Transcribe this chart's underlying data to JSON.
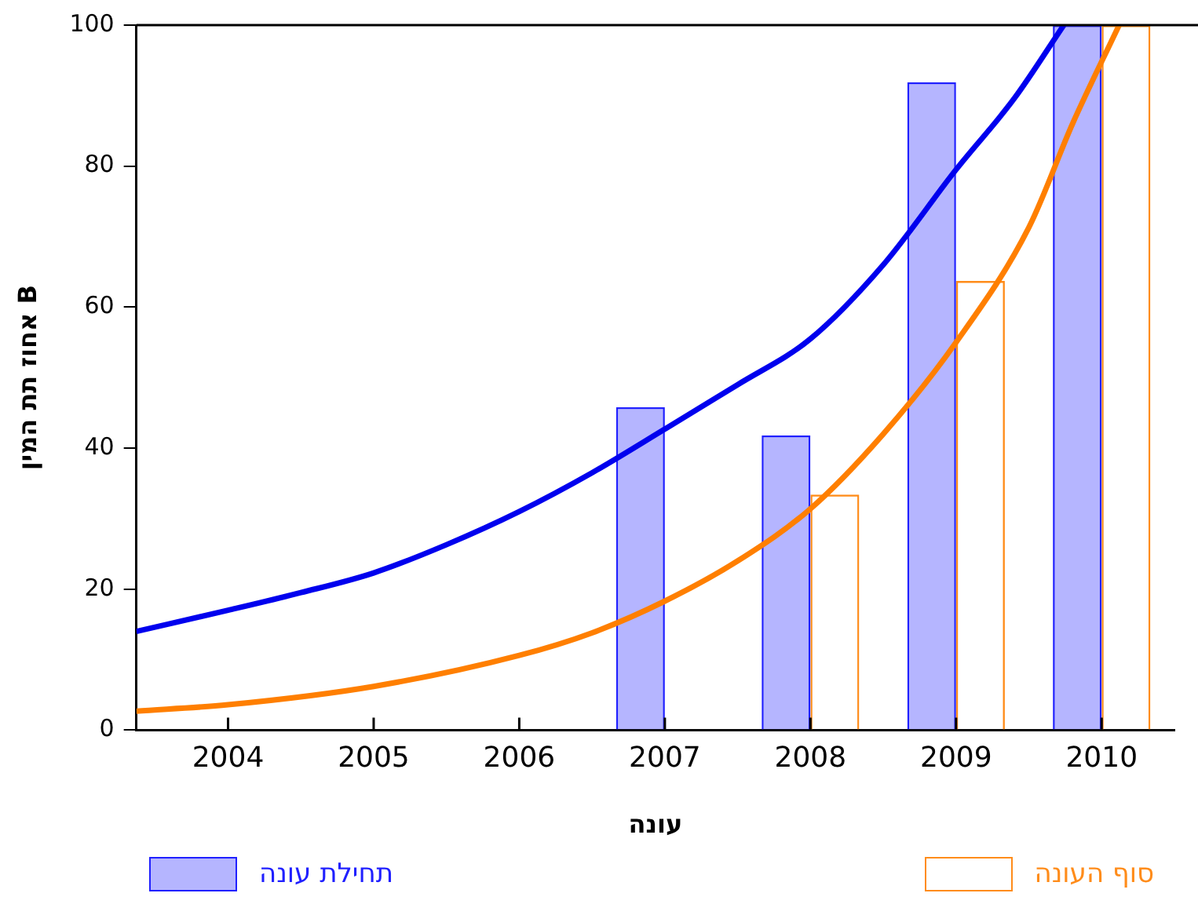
{
  "chart_data": {
    "type": "bar",
    "xlabel": "עונה",
    "ylabel": "אחוז תת המין B",
    "legend": "bottom",
    "grid": false,
    "x": [
      2007,
      2008,
      2009,
      2010
    ],
    "series": [
      {
        "name": "תחילת עונה",
        "color": "#2020ff",
        "values": [
          45.8,
          41.8,
          91.9,
          100
        ]
      },
      {
        "name": "סוף העונה",
        "color": "#ff8c1a",
        "values": [
          null,
          33.4,
          63.7,
          100
        ]
      },
      {
        "type": "line",
        "color": "#0000ee",
        "x": [
          2003.37,
          2004,
          2004.5,
          2005,
          2005.5,
          2006,
          2006.5,
          2007,
          2007.5,
          2008,
          2008.5,
          2009,
          2009.4,
          2009.74
        ],
        "values": [
          14,
          17,
          19.5,
          22.3,
          26.3,
          31,
          36.5,
          42.7,
          49,
          55.5,
          66,
          79.5,
          89.6,
          100
        ]
      },
      {
        "type": "line",
        "color": "#ff7f00",
        "x": [
          2003.37,
          2004,
          2005,
          2006,
          2006.5,
          2007,
          2007.5,
          2008,
          2008.5,
          2009,
          2009.5,
          2009.8,
          2010.12
        ],
        "values": [
          2.7,
          3.6,
          6.2,
          10.6,
          13.8,
          18.3,
          24,
          31.4,
          42,
          55,
          71.3,
          86,
          100
        ]
      }
    ],
    "xlim": [
      2003.37,
      2010.5
    ],
    "xticks": [
      2004,
      2005,
      2006,
      2007,
      2008,
      2009,
      2010
    ],
    "ylim": [
      0,
      100
    ],
    "yticks": [
      0,
      20,
      40,
      60,
      80,
      100
    ]
  }
}
